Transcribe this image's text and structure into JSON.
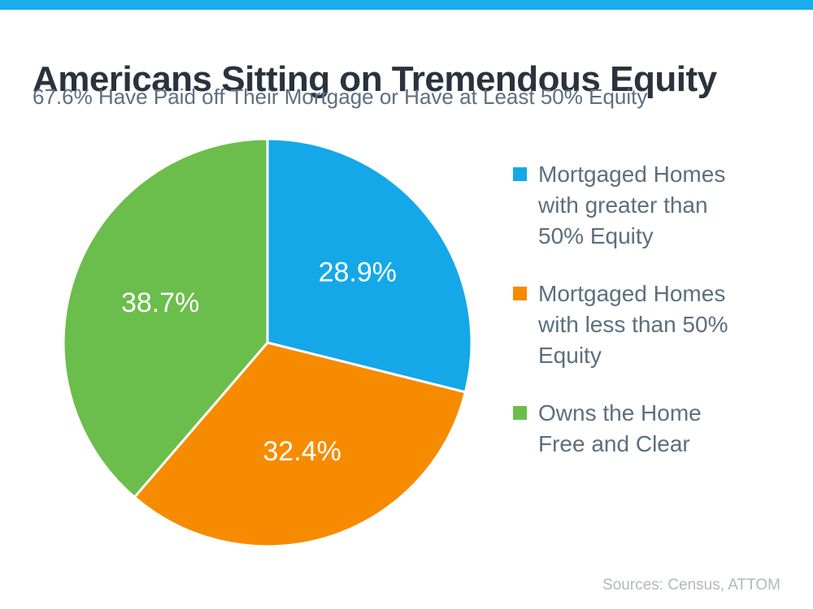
{
  "accent_color": "#19abeb",
  "chart_data": {
    "type": "pie",
    "title": "Americans Sitting on Tremendous Equity",
    "subtitle": "67.6% Have Paid off Their Mortgage or Have at Least 50% Equity",
    "start_angle_deg": 0,
    "direction": "clockwise",
    "legend_position": "right",
    "slice_label_color": "#ffffff",
    "slices": [
      {
        "label": "Mortgaged Homes with greater than 50% Equity",
        "value": 28.9,
        "display": "28.9%",
        "color": "#14a8e8"
      },
      {
        "label": "Mortgaged Homes with less than 50% Equity",
        "value": 32.4,
        "display": "32.4%",
        "color": "#f78b00"
      },
      {
        "label": "Owns the Home Free and Clear",
        "value": 38.7,
        "display": "38.7%",
        "color": "#6bbe4b"
      }
    ],
    "source_note": "Sources: Census, ATTOM"
  }
}
